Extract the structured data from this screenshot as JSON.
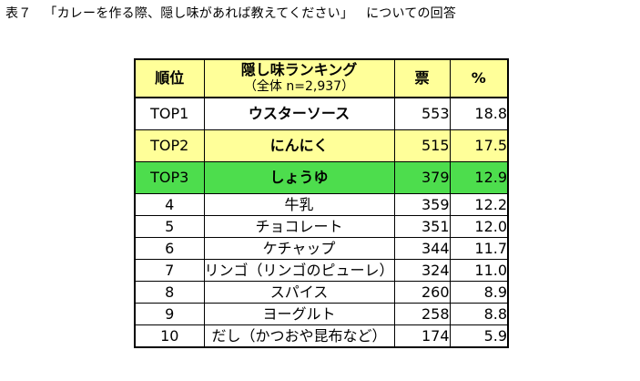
{
  "caption": {
    "label": "表７",
    "title": "「カレーを作る際、隠し味があれば教えてください」",
    "suffix": "についての回答"
  },
  "table": {
    "headers": {
      "rank": "順位",
      "item": "隠し味ランキング",
      "item_sub": "（全体 n=2,937）",
      "votes": "票",
      "pct": "%"
    },
    "highlight_colors": {
      "header": "#ffff99",
      "top2": "#ffff99",
      "top3": "#4ddd4d"
    },
    "rows": [
      {
        "rank": "TOP1",
        "item": "ウスターソース",
        "votes": "553",
        "pct": "18.8"
      },
      {
        "rank": "TOP2",
        "item": "にんにく",
        "votes": "515",
        "pct": "17.5"
      },
      {
        "rank": "TOP3",
        "item": "しょうゆ",
        "votes": "379",
        "pct": "12.9"
      },
      {
        "rank": "4",
        "item": "牛乳",
        "votes": "359",
        "pct": "12.2"
      },
      {
        "rank": "5",
        "item": "チョコレート",
        "votes": "351",
        "pct": "12.0"
      },
      {
        "rank": "6",
        "item": "ケチャップ",
        "votes": "344",
        "pct": "11.7"
      },
      {
        "rank": "7",
        "item": "リンゴ（リンゴのピューレ）",
        "votes": "324",
        "pct": "11.0"
      },
      {
        "rank": "8",
        "item": "スパイス",
        "votes": "260",
        "pct": "8.9"
      },
      {
        "rank": "9",
        "item": "ヨーグルト",
        "votes": "258",
        "pct": "8.8"
      },
      {
        "rank": "10",
        "item": "だし（かつおや昆布など）",
        "votes": "174",
        "pct": "5.9"
      }
    ]
  }
}
